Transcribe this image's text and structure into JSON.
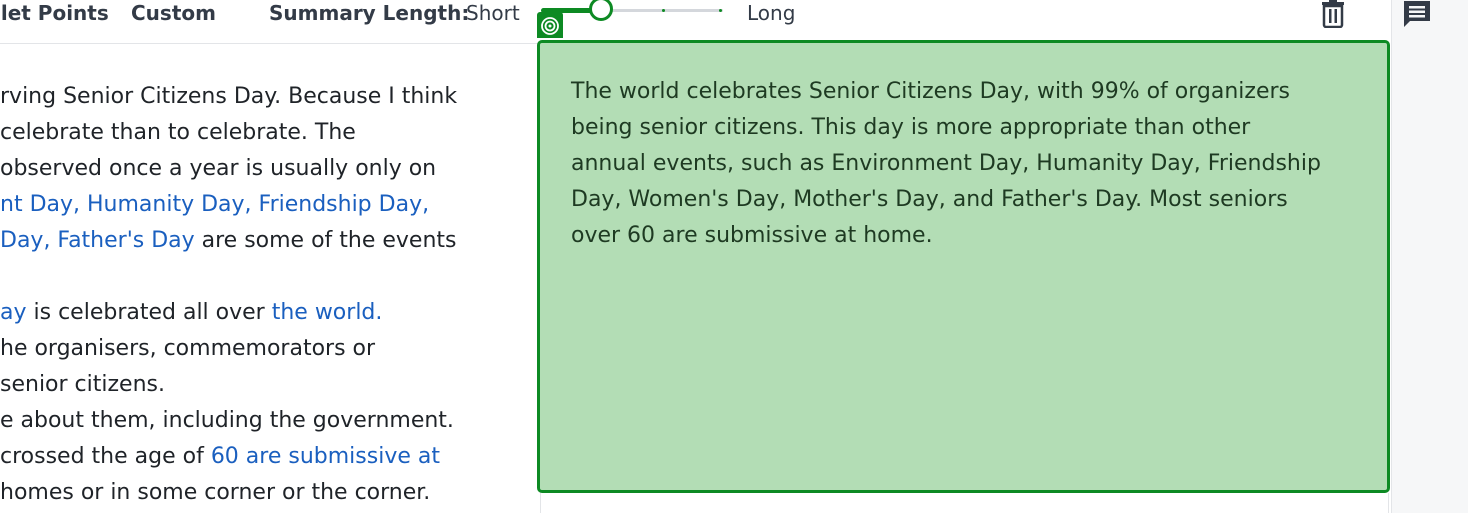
{
  "toolbar": {
    "modes": [
      {
        "label": "llet Points"
      },
      {
        "label": "Custom"
      }
    ],
    "summary_length_label": "Summary Length:",
    "short_label": "Short",
    "long_label": "Long",
    "slider_level": 0.33
  },
  "icons": {
    "trash": "trash-icon",
    "comment": "comment-icon",
    "summary_badge": "target-icon"
  },
  "input_text": {
    "lines": [
      [
        {
          "t": "rving Senior Citizens Day. Because I think",
          "h": false
        }
      ],
      [
        {
          "t": "celebrate than to celebrate. The",
          "h": false
        }
      ],
      [
        {
          "t": "observed once a year is usually only on",
          "h": false
        }
      ],
      [
        {
          "t": "nt Day, Humanity Day, Friendship Day,",
          "h": true
        }
      ],
      [
        {
          "t": "Day, Father's Day",
          "h": true
        },
        {
          "t": " are some of the events",
          "h": false
        }
      ],
      [
        {
          "t": "",
          "h": false
        }
      ],
      [
        {
          "t": "ay",
          "h": true
        },
        {
          "t": " is celebrated all over ",
          "h": false
        },
        {
          "t": "the world.",
          "h": true
        }
      ],
      [
        {
          "t": "he organisers, commemorators or",
          "h": false
        }
      ],
      [
        {
          "t": " senior citizens.",
          "h": false
        }
      ],
      [
        {
          "t": "e about them, including the government.",
          "h": false
        }
      ],
      [
        {
          "t": "crossed the age of ",
          "h": false
        },
        {
          "t": "60 are submissive at",
          "h": true
        }
      ],
      [
        {
          "t": "homes or in some corner or the corner.",
          "h": false
        }
      ]
    ]
  },
  "summary": {
    "text": "The world celebrates Senior Citizens Day, with 99% of organizers being senior citizens. This day is more appropriate than other annual events, such as Environment Day, Humanity Day, Friendship Day, Women's Day, Mother's Day, and Father's Day. Most seniors over 60 are submissive at home."
  },
  "colors": {
    "accent_green": "#0d8a23",
    "summary_bg": "#b3ddb5",
    "highlight_blue": "#1a5fbf"
  }
}
